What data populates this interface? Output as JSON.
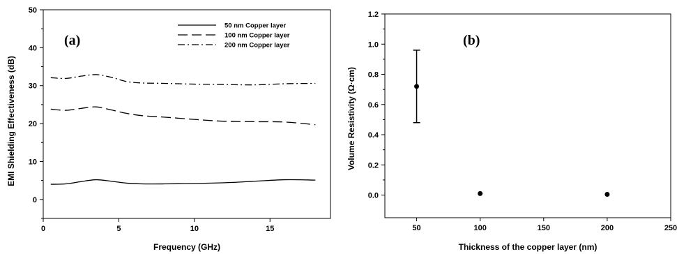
{
  "chart_data": [
    {
      "type": "line",
      "panel_label": "(a)",
      "xlabel": "Frequency (GHz)",
      "ylabel": "EMI Shielding Effectiveness (dB)",
      "xlim": [
        0,
        19
      ],
      "ylim": [
        -5,
        50
      ],
      "xticks": [
        "0",
        "5",
        "10",
        "15"
      ],
      "yticks": [
        "0",
        "10",
        "20",
        "30",
        "40",
        "50"
      ],
      "legend_position": "top-right",
      "series": [
        {
          "name": "50 nm Copper layer",
          "style": "solid",
          "x": [
            0.5,
            1.5,
            2.5,
            3.5,
            4.5,
            5.5,
            6.5,
            8,
            10,
            12,
            14,
            16,
            18
          ],
          "y": [
            4.0,
            4.1,
            4.7,
            5.2,
            4.8,
            4.3,
            4.1,
            4.1,
            4.2,
            4.4,
            4.8,
            5.2,
            5.1
          ]
        },
        {
          "name": "100 nm Copper layer",
          "style": "dashed",
          "x": [
            0.5,
            1.5,
            2.5,
            3.5,
            4.5,
            5.5,
            6.5,
            8,
            10,
            12,
            14,
            16,
            18
          ],
          "y": [
            23.8,
            23.5,
            24.0,
            24.4,
            23.6,
            22.7,
            22.1,
            21.7,
            21.1,
            20.6,
            20.5,
            20.4,
            19.7
          ]
        },
        {
          "name": "200 nm  Copper layer",
          "style": "dashdot",
          "x": [
            0.5,
            1.5,
            2.5,
            3.5,
            4.5,
            5.5,
            6.5,
            8,
            10,
            12,
            14,
            16,
            18
          ],
          "y": [
            32.1,
            31.9,
            32.5,
            32.9,
            32.2,
            31.1,
            30.7,
            30.6,
            30.4,
            30.3,
            30.2,
            30.5,
            30.6
          ]
        }
      ]
    },
    {
      "type": "scatter",
      "panel_label": "(b)",
      "xlabel": "Thickness of the copper layer (nm)",
      "ylabel": "Volume Resistivity (Ω·cm)",
      "xlim": [
        25,
        250
      ],
      "ylim": [
        -0.15,
        1.2
      ],
      "xticks": [
        "50",
        "100",
        "150",
        "200",
        "250"
      ],
      "yticks": [
        "0.0",
        "0.2",
        "0.4",
        "0.6",
        "0.8",
        "1.0",
        "1.2"
      ],
      "points": [
        {
          "x": 50,
          "y": 0.72,
          "err_low": 0.48,
          "err_high": 0.96
        },
        {
          "x": 100,
          "y": 0.01,
          "err_low": 0.008,
          "err_high": 0.012
        },
        {
          "x": 200,
          "y": 0.005,
          "err_low": 0.004,
          "err_high": 0.006
        }
      ]
    }
  ]
}
